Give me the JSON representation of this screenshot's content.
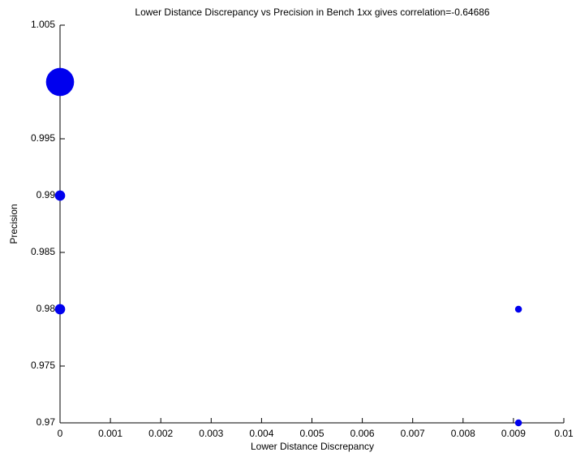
{
  "chart_data": {
    "type": "scatter",
    "title": "Lower Distance Discrepancy vs Precision in Bench 1xx gives correlation=-0.64686",
    "xlabel": "Lower Distance Discrepancy",
    "ylabel": "Precision",
    "x": [
      0,
      0,
      0,
      0.0091,
      0.0091
    ],
    "series": [
      {
        "color": "#0000ee",
        "values": [
          1.0,
          0.99,
          0.98,
          0.98,
          0.97
        ],
        "sizes": [
          300,
          40,
          40,
          18,
          18
        ]
      }
    ],
    "xlim": [
      0,
      0.01
    ],
    "xticks": [
      0,
      0.001,
      0.002,
      0.003,
      0.004,
      0.005,
      0.006,
      0.007,
      0.008,
      0.009,
      0.01
    ],
    "ylim": [
      0.97,
      1.005
    ],
    "yticks": [
      0.97,
      0.975,
      0.98,
      0.985,
      0.99,
      0.995,
      1.005
    ],
    "grid": false
  }
}
